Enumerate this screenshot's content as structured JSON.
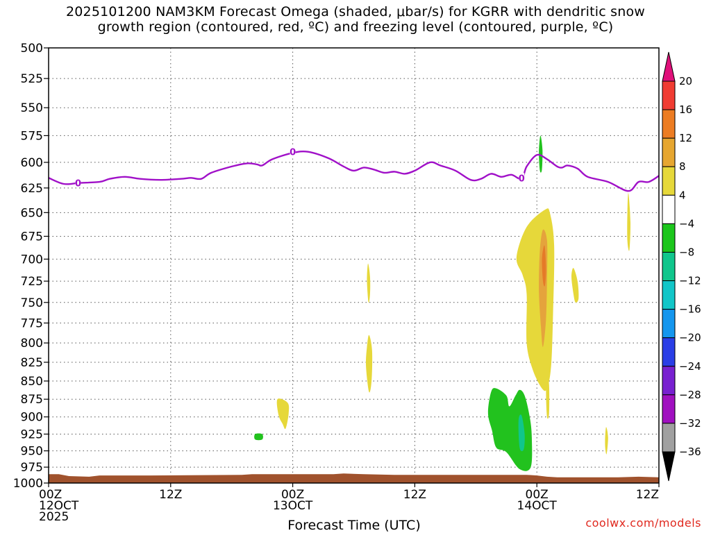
{
  "title_line1": "2025101200 NAM3KM Forecast Omega (shaded, μbar/s) for KGRR with dendritic snow",
  "title_line2": "growth region (contoured, red, ºC) and freezing level (contoured, purple, ºC)",
  "watermark": "coolwx.com/models",
  "chart_data": {
    "type": "contour",
    "title": "2025101200 NAM3KM Forecast Omega (shaded, μbar/s) for KGRR with dendritic snow growth region (contoured, red, ºC) and freezing level (contoured, purple, ºC)",
    "xlabel": "Forecast Time (UTC)",
    "ylabel": "",
    "x_ticks": [
      {
        "hour": 0,
        "labels": [
          "00Z",
          "12OCT",
          "2025"
        ]
      },
      {
        "hour": 12,
        "labels": [
          "12Z"
        ]
      },
      {
        "hour": 24,
        "labels": [
          "00Z",
          "13OCT"
        ]
      },
      {
        "hour": 36,
        "labels": [
          "12Z"
        ]
      },
      {
        "hour": 48,
        "labels": [
          "00Z",
          "14OCT"
        ]
      },
      {
        "hour": 60,
        "labels": [
          "12Z"
        ]
      }
    ],
    "xlim": [
      0,
      60
    ],
    "ylim": [
      1000,
      500
    ],
    "y_scale": "log-pressure",
    "y_ticks": [
      500,
      525,
      550,
      575,
      600,
      625,
      650,
      675,
      700,
      725,
      750,
      775,
      800,
      825,
      850,
      875,
      900,
      925,
      950,
      975,
      1000
    ],
    "grid": true,
    "freezing_level": {
      "color": "#a010c8",
      "label": "0",
      "points": [
        [
          0,
          615
        ],
        [
          1.5,
          621
        ],
        [
          3,
          620
        ],
        [
          5,
          619
        ],
        [
          6,
          616
        ],
        [
          7.5,
          614
        ],
        [
          9,
          616
        ],
        [
          11,
          617
        ],
        [
          13,
          616
        ],
        [
          14,
          615
        ],
        [
          15,
          616
        ],
        [
          16,
          610
        ],
        [
          18,
          604
        ],
        [
          19.5,
          601
        ],
        [
          20.5,
          602
        ],
        [
          21,
          603
        ],
        [
          22,
          597
        ],
        [
          24,
          591
        ],
        [
          25.5,
          590
        ],
        [
          27.5,
          596
        ],
        [
          29,
          604
        ],
        [
          30,
          608
        ],
        [
          31,
          605
        ],
        [
          32,
          607
        ],
        [
          33,
          610
        ],
        [
          34,
          609
        ],
        [
          35,
          611
        ],
        [
          36,
          608
        ],
        [
          37.5,
          600
        ],
        [
          38.5,
          603
        ],
        [
          40,
          608
        ],
        [
          41.5,
          617
        ],
        [
          42.5,
          616
        ],
        [
          43.5,
          611
        ],
        [
          44.5,
          614
        ],
        [
          45.5,
          612
        ],
        [
          46.5,
          616
        ],
        [
          47,
          604
        ],
        [
          48,
          593
        ],
        [
          49,
          597
        ],
        [
          50,
          604
        ],
        [
          50.5,
          605
        ],
        [
          51,
          603
        ],
        [
          52,
          606
        ],
        [
          53,
          614
        ],
        [
          55,
          619
        ],
        [
          57,
          628
        ],
        [
          58,
          619
        ],
        [
          59,
          619
        ],
        [
          60,
          613
        ]
      ],
      "label_positions": [
        [
          2.9,
          620
        ],
        [
          24,
          590
        ],
        [
          46.5,
          615
        ]
      ]
    },
    "omega_regions": [
      {
        "value_range": [
          4,
          8
        ],
        "color": "#e6d83a",
        "desc": "upward motion area near 14OCT 00Z",
        "points": [
          [
            46,
            698
          ],
          [
            47,
            665
          ],
          [
            48.8,
            647
          ],
          [
            49.3,
            651
          ],
          [
            49.7,
            685
          ],
          [
            49.6,
            760
          ],
          [
            49.4,
            830
          ],
          [
            49,
            860
          ],
          [
            48.5,
            860
          ],
          [
            47.6,
            835
          ],
          [
            47,
            800
          ],
          [
            47,
            740
          ],
          [
            46.6,
            718
          ]
        ]
      },
      {
        "value_range": [
          8,
          12
        ],
        "color": "#e5a33c",
        "points": [
          [
            48.3,
            690
          ],
          [
            48.6,
            668
          ],
          [
            49,
            680
          ],
          [
            49,
            720
          ],
          [
            48.9,
            770
          ],
          [
            48.6,
            805
          ],
          [
            48.4,
            780
          ],
          [
            48.2,
            735
          ]
        ]
      },
      {
        "value_range": [
          12,
          16
        ],
        "color": "#e57a28",
        "points": [
          [
            48.5,
            700
          ],
          [
            48.75,
            685
          ],
          [
            48.9,
            710
          ],
          [
            48.8,
            730
          ],
          [
            48.6,
            725
          ]
        ]
      },
      {
        "value_range": [
          4,
          8
        ],
        "color": "#e6d83a",
        "points": [
          [
            49,
            835
          ],
          [
            49.2,
            855
          ],
          [
            49.2,
            895
          ],
          [
            49,
            900
          ],
          [
            48.9,
            865
          ]
        ]
      },
      {
        "value_range": [
          4,
          8
        ],
        "color": "#e6d83a",
        "points": [
          [
            31.4,
            705
          ],
          [
            31.6,
            720
          ],
          [
            31.6,
            740
          ],
          [
            31.45,
            750
          ],
          [
            31.3,
            725
          ]
        ]
      },
      {
        "value_range": [
          4,
          8
        ],
        "color": "#e6d83a",
        "points": [
          [
            31.5,
            790
          ],
          [
            31.8,
            810
          ],
          [
            31.75,
            850
          ],
          [
            31.5,
            865
          ],
          [
            31.2,
            830
          ],
          [
            31.3,
            805
          ]
        ]
      },
      {
        "value_range": [
          4,
          8
        ],
        "color": "#e6d83a",
        "points": [
          [
            51.6,
            710
          ],
          [
            52,
            725
          ],
          [
            52.1,
            745
          ],
          [
            51.8,
            750
          ],
          [
            51.6,
            740
          ],
          [
            51.4,
            720
          ]
        ]
      },
      {
        "value_range": [
          4,
          8
        ],
        "color": "#e6d83a",
        "points": [
          [
            57,
            630
          ],
          [
            57.2,
            660
          ],
          [
            57.1,
            690
          ],
          [
            56.9,
            680
          ],
          [
            56.9,
            650
          ]
        ]
      },
      {
        "value_range": [
          4,
          8
        ],
        "color": "#e6d83a",
        "points": [
          [
            54.8,
            915
          ],
          [
            55,
            930
          ],
          [
            54.85,
            955
          ],
          [
            54.7,
            940
          ]
        ]
      },
      {
        "value_range": [
          4,
          8
        ],
        "color": "#e6d83a",
        "points": [
          [
            22.5,
            875
          ],
          [
            23.5,
            880
          ],
          [
            23.6,
            895
          ],
          [
            23.3,
            917
          ],
          [
            23,
            910
          ],
          [
            22.6,
            897
          ]
        ]
      },
      {
        "value_range": [
          -8,
          -4
        ],
        "color": "#22c21e",
        "desc": "downward motion area before 14OCT 00Z",
        "points": [
          [
            43.5,
            865
          ],
          [
            44,
            860
          ],
          [
            45,
            870
          ],
          [
            45.3,
            885
          ],
          [
            45.9,
            870
          ],
          [
            46.3,
            862
          ],
          [
            46.8,
            870
          ],
          [
            47.3,
            900
          ],
          [
            47.5,
            930
          ],
          [
            47.4,
            975
          ],
          [
            46.3,
            978
          ],
          [
            45,
            952
          ],
          [
            44,
            945
          ],
          [
            43.6,
            920
          ],
          [
            43.2,
            895
          ]
        ]
      },
      {
        "value_range": [
          -12,
          -8
        ],
        "color": "#10c68c",
        "points": [
          [
            46.2,
            905
          ],
          [
            46.5,
            898
          ],
          [
            46.8,
            925
          ],
          [
            46.7,
            948
          ],
          [
            46.3,
            945
          ]
        ]
      },
      {
        "value_range": [
          -8,
          -4
        ],
        "color": "#22c21e",
        "points": [
          [
            48.2,
            590
          ],
          [
            48.35,
            575
          ],
          [
            48.55,
            588
          ],
          [
            48.5,
            607
          ],
          [
            48.3,
            608
          ]
        ]
      },
      {
        "value_range": [
          -8,
          -4
        ],
        "color": "#22c21e",
        "points": [
          [
            20.3,
            925
          ],
          [
            21,
            925
          ],
          [
            21,
            933
          ],
          [
            20.3,
            933
          ]
        ]
      }
    ],
    "terrain": {
      "color": "#a0522d",
      "points": [
        [
          0,
          986
        ],
        [
          1,
          986
        ],
        [
          2,
          989
        ],
        [
          4,
          990
        ],
        [
          5,
          988
        ],
        [
          8,
          988
        ],
        [
          10,
          988
        ],
        [
          19,
          987
        ],
        [
          20,
          986
        ],
        [
          28,
          986
        ],
        [
          29,
          985
        ],
        [
          31,
          986
        ],
        [
          34,
          987
        ],
        [
          47,
          987
        ],
        [
          48,
          988
        ],
        [
          49,
          990
        ],
        [
          50,
          991
        ],
        [
          56,
          991
        ],
        [
          58,
          990
        ],
        [
          60,
          991
        ]
      ]
    },
    "colorbar": {
      "levels": [
        "20",
        "16",
        "12",
        "8",
        "4",
        "−4",
        "−8",
        "−12",
        "−16",
        "−20",
        "−24",
        "−28",
        "−32",
        "−36"
      ],
      "colors": [
        "#e0107a",
        "#f03c32",
        "#ec7c22",
        "#e6a630",
        "#e6d83a",
        "#ffffff",
        "#1cc61c",
        "#10c68c",
        "#12c6c8",
        "#1496ee",
        "#2a3ee6",
        "#7820d0",
        "#a010c0",
        "#a0a0a0",
        "#000000"
      ]
    }
  }
}
